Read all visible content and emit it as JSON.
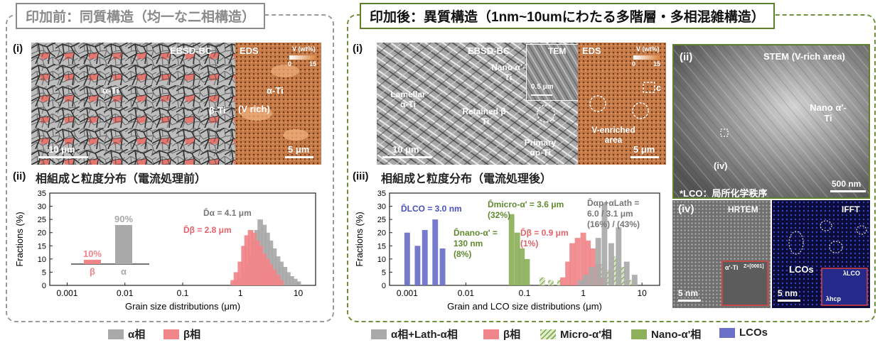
{
  "left": {
    "heading": "印加前：同質構造（均一な二相構造）",
    "panel_i": "(i)",
    "ebsd_label": "EBSD-BC",
    "eds_label": "EDS",
    "eds_unit": "V (wt%)",
    "eds_min": "0",
    "eds_max": "15",
    "alpha_label": "α-Ti",
    "beta_label": "β-Ti",
    "vrich_label": "(V rich)",
    "alpha_eds_label": "α-Ti",
    "scale1": "10 μm",
    "scale2": "5 μm",
    "panel_ii": "(ii)",
    "panel_ii_title": "相組成と粒度分布（電流処理前）"
  },
  "right": {
    "heading": "印加後：異質構造（1nm~10umにわたる多階層・多相混雑構造）",
    "panel_i": "(i)",
    "ebsd_label": "EBSD-BC",
    "tem_label": "TEM",
    "eds_label": "EDS",
    "eds_unit": "V (wt%)",
    "eds_min": "0",
    "eds_max": "15",
    "lamellar": "Lamellar α-Ti",
    "retained": "Retained β-Ti",
    "primary": "Primary αp-Ti",
    "nano": "Nano α'-Ti",
    "tem_scale": "0.5 μm",
    "venriched": "V-enriched area",
    "c_label": "c",
    "scale1": "10 μm",
    "scale2": "5 μm",
    "panel_iii": "(iii)",
    "panel_iii_title": "相組成と粒度分布（電流処理後）",
    "panel_ii": "(ii)",
    "stem_label": "STEM (V-rich area)",
    "stem_nano": "Nano α'-Ti",
    "stem_iv": "(iv)",
    "stem_scale": "500 nm",
    "lco_note": "*LCO：局所化学秩序",
    "panel_iv": "(iv)",
    "hrtem": "HRTEM",
    "ifft": "IFFT",
    "hr_scale": "5 nm",
    "ifft_scale": "5 nm",
    "lcos": "LCOs",
    "alpha_prime": "α'-Ti",
    "zone": "Z=[0001]",
    "lambda_lco": "λLCO",
    "lambda_hcp": "λhcp"
  },
  "legend": {
    "left": [
      {
        "label": "α相",
        "color": "#a9a9a9",
        "pattern": "solid"
      },
      {
        "label": "β相",
        "color": "#f0868a",
        "pattern": "solid"
      }
    ],
    "right": [
      {
        "label": "α相+Lath-α相",
        "color": "#a9a9a9",
        "pattern": "solid"
      },
      {
        "label": "β相",
        "color": "#f0868a",
        "pattern": "solid"
      },
      {
        "label": "Micro-α'相",
        "color": "#8db05a",
        "pattern": "hatch"
      },
      {
        "label": "Nano-α'相",
        "color": "#8db05a",
        "pattern": "solid"
      },
      {
        "label": "LCOs",
        "color": "#6a6fc8",
        "pattern": "solid"
      }
    ]
  },
  "chart_data": [
    {
      "type": "bar",
      "title": "",
      "xlabel": "Grain size distributions (μm)",
      "ylabel": "Fractions (%)",
      "xscale": "log",
      "xlim": [
        0.0005,
        20
      ],
      "ylim": [
        0,
        35
      ],
      "x_ticks": [
        "0.001",
        "0.01",
        "0.1",
        "1",
        "10"
      ],
      "y_ticks": [
        "0",
        "5",
        "10",
        "15",
        "20",
        "25",
        "30",
        "35"
      ],
      "phase_fraction_inset": {
        "categories": [
          "β",
          "α"
        ],
        "values": [
          10,
          90
        ],
        "labels": [
          "10%",
          "90%"
        ]
      },
      "series": [
        {
          "name": "α",
          "color": "#a9a9a9",
          "x": [
            0.75,
            0.85,
            1.0,
            1.15,
            1.3,
            1.5,
            1.7,
            1.95,
            2.2,
            2.55,
            2.9,
            3.3,
            3.8,
            4.4,
            5.0,
            5.8,
            6.6,
            7.6,
            8.7,
            10.0
          ],
          "values": [
            1,
            2,
            3,
            5,
            8,
            12,
            17,
            21,
            25,
            23,
            20,
            17,
            14,
            11,
            9,
            7,
            5,
            3.5,
            2.5,
            1.5
          ]
        },
        {
          "name": "β",
          "color": "#f0868a",
          "x": [
            0.75,
            0.85,
            1.0,
            1.15,
            1.3,
            1.5,
            1.7,
            1.95,
            2.2,
            2.55,
            2.9,
            3.3,
            3.8,
            4.4,
            5.0
          ],
          "values": [
            2,
            5,
            9,
            15,
            19,
            21,
            20,
            17,
            15,
            12,
            10,
            8,
            6,
            4,
            2
          ]
        }
      ],
      "annotations": [
        "D̄α = 4.1 μm",
        "D̄β = 2.8 μm"
      ]
    },
    {
      "type": "bar",
      "title": "",
      "xlabel": "Grain and LCO size distributions (μm)",
      "ylabel": "Fractions (%)",
      "xscale": "log",
      "xlim": [
        0.0005,
        20
      ],
      "ylim": [
        0,
        35
      ],
      "x_ticks": [
        "0.001",
        "0.01",
        "0.1",
        "1",
        "10"
      ],
      "y_ticks": [
        "0",
        "5",
        "10",
        "15",
        "20",
        "25",
        "30",
        "35"
      ],
      "series": [
        {
          "name": "LCOs",
          "color": "#6a6fc8",
          "x": [
            0.001,
            0.0015,
            0.002,
            0.003,
            0.004
          ],
          "values": [
            20,
            15,
            21,
            25,
            14
          ]
        },
        {
          "name": "Nano-α'",
          "color": "#8db05a",
          "x": [
            0.06,
            0.075,
            0.09,
            0.11
          ],
          "values": [
            27,
            20,
            14,
            10
          ]
        },
        {
          "name": "Micro-α'",
          "color": "#8db05a",
          "pattern": "hatch",
          "x": [
            0.2,
            0.28,
            0.4,
            1.5,
            2.0,
            2.6,
            3.4,
            4.5,
            6.0
          ],
          "values": [
            3,
            2,
            2,
            3,
            8,
            6,
            11,
            7,
            2
          ]
        },
        {
          "name": "β",
          "color": "#f0868a",
          "x": [
            0.45,
            0.55,
            0.65,
            0.8,
            1.0,
            1.2,
            1.45,
            1.8,
            2.2
          ],
          "values": [
            3,
            9,
            16,
            18,
            20,
            17,
            14,
            8,
            3
          ]
        },
        {
          "name": "α + Lath-α",
          "color": "#a9a9a9",
          "x": [
            0.9,
            1.1,
            1.4,
            1.8,
            2.3,
            3.0,
            4.0,
            5.5,
            7.5
          ],
          "values": [
            2,
            4,
            7,
            18,
            31,
            16,
            22,
            9,
            4
          ]
        }
      ],
      "annotations": [
        "D̄LCO = 3.0 nm",
        "D̄micro-α' = 3.6 μm (32%)",
        "D̄nano-α' = 130 nm (8%)",
        "D̄β = 0.9 μm (1%)",
        "D̄αp+αLath = 6.0 / 3.1 μm (16%) / (43%)"
      ]
    }
  ]
}
